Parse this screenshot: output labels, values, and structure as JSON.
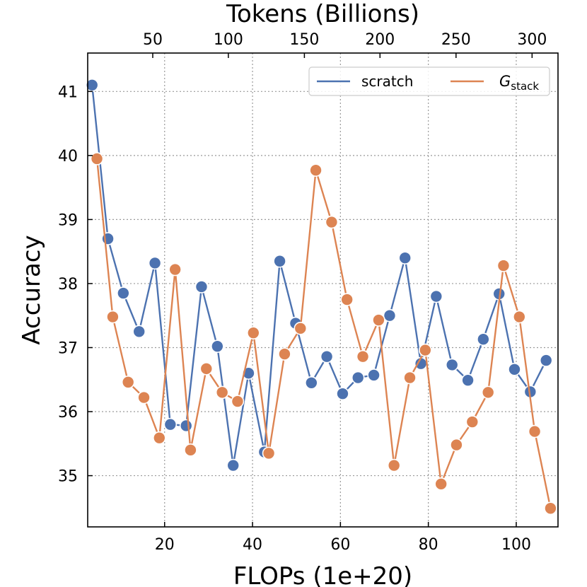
{
  "chart_data": {
    "type": "line",
    "xlabel": "FLOPs (1e+20)",
    "ylabel": "Accuracy",
    "top_xlabel": "Tokens (Billions)",
    "xlim": [
      2.5,
      109.5
    ],
    "ylim": [
      34.2,
      41.6
    ],
    "xticks": [
      20,
      40,
      60,
      80,
      100
    ],
    "yticks": [
      35,
      36,
      37,
      38,
      39,
      40,
      41
    ],
    "top_ticks": [
      {
        "label": "50",
        "flops": 17.3
      },
      {
        "label": "100",
        "flops": 34.5
      },
      {
        "label": "150",
        "flops": 51.8
      },
      {
        "label": "200",
        "flops": 69.0
      },
      {
        "label": "250",
        "flops": 86.3
      },
      {
        "label": "300",
        "flops": 103.6
      }
    ],
    "grid": true,
    "legend": {
      "placement": "top-right",
      "columns": 2
    },
    "series": [
      {
        "name": "scratch",
        "color": "#4C72B0",
        "x": [
          3.5,
          7.1,
          10.6,
          14.2,
          17.8,
          21.3,
          24.9,
          28.4,
          32.0,
          35.6,
          39.1,
          42.7,
          46.2,
          49.8,
          53.4,
          56.9,
          60.5,
          64.0,
          67.6,
          71.2,
          74.7,
          78.3,
          81.8,
          85.4,
          89.0,
          92.5,
          96.1,
          99.6,
          103.2,
          106.8
        ],
        "y": [
          41.1,
          38.7,
          37.85,
          37.25,
          38.32,
          35.8,
          35.78,
          37.95,
          37.02,
          35.16,
          36.6,
          35.37,
          38.35,
          37.38,
          36.45,
          36.86,
          36.28,
          36.53,
          36.57,
          37.5,
          38.4,
          36.75,
          37.8,
          36.73,
          36.49,
          37.13,
          37.84,
          36.66,
          36.31,
          36.8
        ]
      },
      {
        "name": "G_stack",
        "name_base": "G",
        "name_sub": "stack",
        "color": "#DD8452",
        "x": [
          4.6,
          8.2,
          11.7,
          15.3,
          18.8,
          22.4,
          25.9,
          29.5,
          33.1,
          36.6,
          40.2,
          43.7,
          47.3,
          50.9,
          54.4,
          58.0,
          61.5,
          65.1,
          68.7,
          72.2,
          75.8,
          79.3,
          82.9,
          86.4,
          90.0,
          93.6,
          97.1,
          100.7,
          104.2,
          107.8
        ],
        "y": [
          39.95,
          37.48,
          36.46,
          36.22,
          35.59,
          38.22,
          35.4,
          36.67,
          36.3,
          36.16,
          37.23,
          35.35,
          36.9,
          37.3,
          39.77,
          38.96,
          37.75,
          36.86,
          37.43,
          35.16,
          36.53,
          36.96,
          34.87,
          35.48,
          35.84,
          36.3,
          38.28,
          37.48,
          35.69,
          34.49
        ]
      }
    ]
  }
}
